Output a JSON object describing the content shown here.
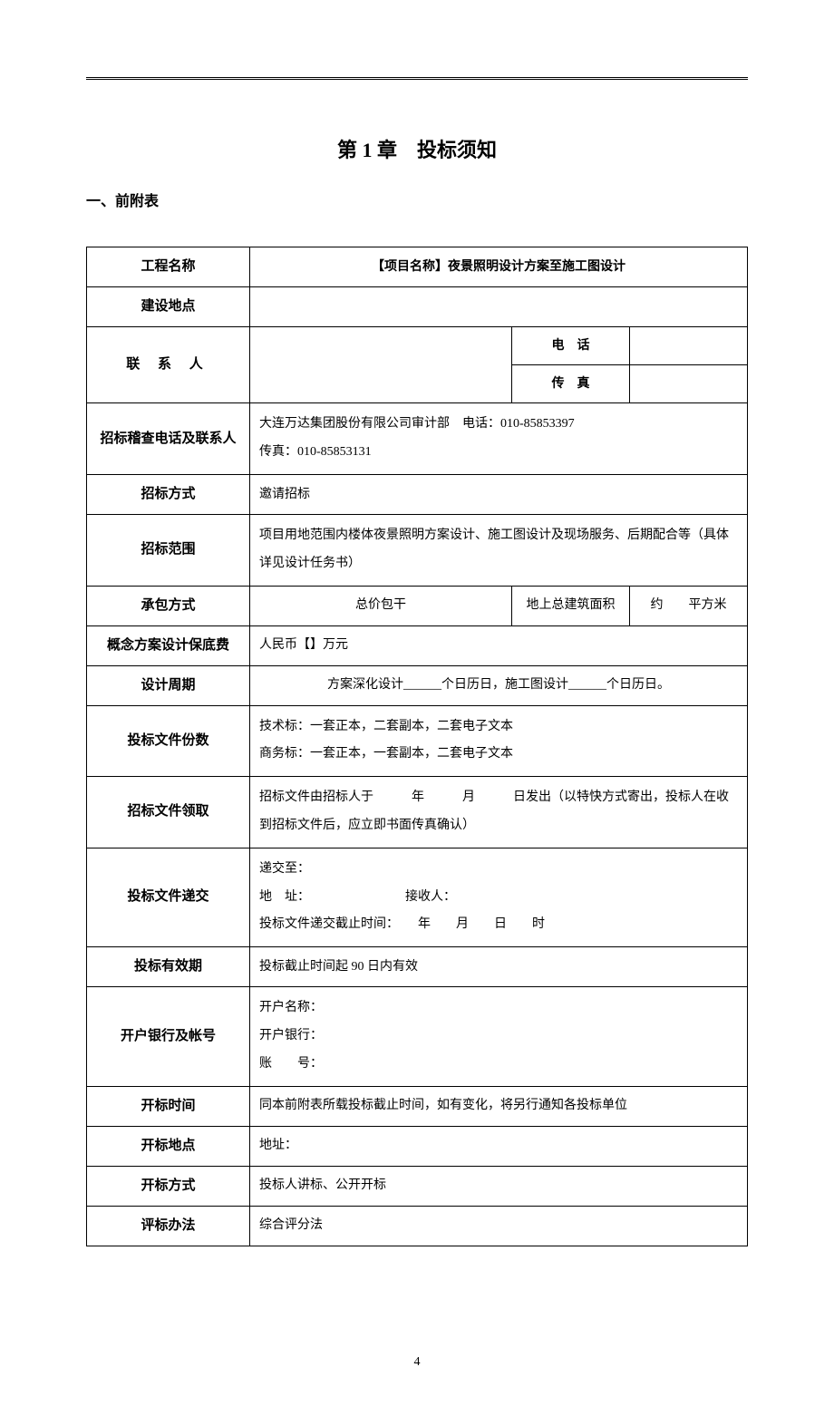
{
  "chapter_title": "第 1 章　投标须知",
  "section_label": "一、前附表",
  "page_number": "4",
  "rows": {
    "project_name": {
      "label": "工程名称",
      "value": "【项目名称】夜景照明设计方案至施工图设计"
    },
    "construction_site": {
      "label": "建设地点",
      "value": ""
    },
    "contact": {
      "label": "联 系 人",
      "phone_label": "电　话",
      "fax_label": "传　真",
      "phone": "",
      "fax": ""
    },
    "audit_contact": {
      "label": "招标稽查电话及联系人",
      "line1": "大连万达集团股份有限公司审计部　电话：010-85853397",
      "line2": "传真：010-85853131"
    },
    "bid_method": {
      "label": "招标方式",
      "value": "邀请招标"
    },
    "bid_scope": {
      "label": "招标范围",
      "value": "项目用地范围内楼体夜景照明方案设计、施工图设计及现场服务、后期配合等（具体详见设计任务书）"
    },
    "contract_method": {
      "label": "承包方式",
      "col1": "总价包干",
      "col2_label": "地上总建筑面积",
      "col3": "约　　平方米"
    },
    "base_fee": {
      "label": "概念方案设计保底费",
      "value": "人民币【】万元"
    },
    "design_period": {
      "label": "设计周期",
      "value": "方案深化设计______个日历日，施工图设计______个日历日。"
    },
    "doc_copies": {
      "label": "投标文件份数",
      "line1": "技术标：一套正本，二套副本，二套电子文本",
      "line2": "商务标：一套正本，一套副本，二套电子文本"
    },
    "doc_receive": {
      "label": "招标文件领取",
      "value": "招标文件由招标人于　　　年　　　月　　　日发出（以特快方式寄出，投标人在收到招标文件后，应立即书面传真确认）"
    },
    "doc_submit": {
      "label": "投标文件递交",
      "line1": "递交至：",
      "line2": "地　址：　　　　　　　　接收人：",
      "line3": "投标文件递交截止时间：　　年　　月　　日　　时"
    },
    "validity": {
      "label": "投标有效期",
      "value": "投标截止时间起 90 日内有效"
    },
    "bank": {
      "label": "开户银行及帐号",
      "line1": "开户名称：",
      "line2": "开户银行：",
      "line3": "账　　号："
    },
    "open_time": {
      "label": "开标时间",
      "value": "同本前附表所载投标截止时间，如有变化，将另行通知各投标单位"
    },
    "open_place": {
      "label": "开标地点",
      "value": "地址："
    },
    "open_method": {
      "label": "开标方式",
      "value": "投标人讲标、公开开标"
    },
    "eval_method": {
      "label": "评标办法",
      "value": "综合评分法"
    }
  }
}
